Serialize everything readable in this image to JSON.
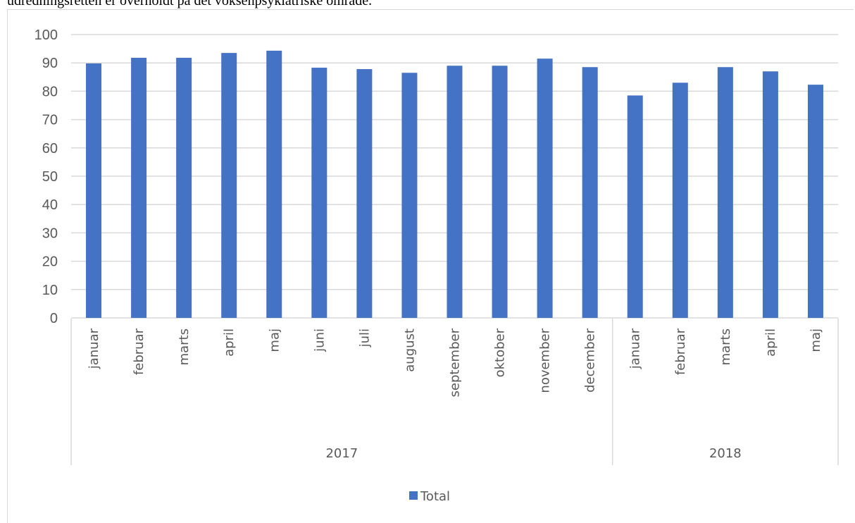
{
  "caption": "udredningsretten er overholdt på det voksenpsykiatriske område.",
  "chart_data": {
    "type": "bar",
    "categories": [
      "januar",
      "februar",
      "marts",
      "april",
      "maj",
      "juni",
      "juli",
      "august",
      "september",
      "oktober",
      "november",
      "december",
      "januar",
      "februar",
      "marts",
      "april",
      "maj"
    ],
    "groups": [
      {
        "label": "2017",
        "count": 12
      },
      {
        "label": "2018",
        "count": 5
      }
    ],
    "series": [
      {
        "name": "Total",
        "color": "#4472c4",
        "values": [
          89.8,
          91.8,
          91.8,
          93.5,
          94.3,
          88.3,
          87.8,
          86.5,
          89.0,
          89.0,
          91.5,
          88.5,
          78.5,
          83.0,
          88.5,
          87.0,
          82.3
        ]
      }
    ],
    "yticks": [
      0,
      10,
      20,
      30,
      40,
      50,
      60,
      70,
      80,
      90,
      100
    ],
    "ylim": [
      0,
      100
    ],
    "grid": true,
    "legend": "bottom-center",
    "title": "",
    "xlabel": "",
    "ylabel": ""
  }
}
